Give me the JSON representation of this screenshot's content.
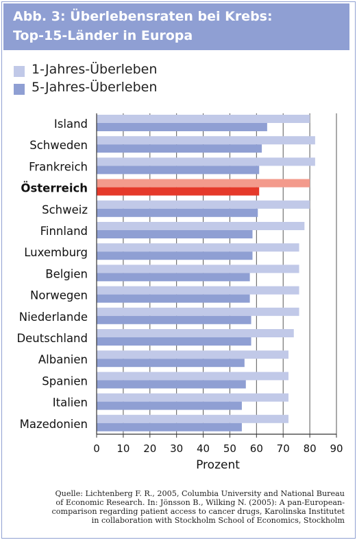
{
  "title": {
    "line1": "Abb. 3: Überlebensraten bei Krebs:",
    "line2": "Top-15-Länder in Europa"
  },
  "colors": {
    "title_bg": "#8f9fd3",
    "series1": "#c1c9e8",
    "series2": "#8f9fd3",
    "highlight1": "#f39a8c",
    "highlight2": "#e5392a",
    "grid": "#555555"
  },
  "chart_data": {
    "type": "bar",
    "orientation": "horizontal",
    "categories": [
      "Island",
      "Schweden",
      "Frankreich",
      "Österreich",
      "Schweiz",
      "Finnland",
      "Luxemburg",
      "Belgien",
      "Norwegen",
      "Niederlande",
      "Deutschland",
      "Albanien",
      "Spanien",
      "Italien",
      "Mazedonien"
    ],
    "highlight_category": "Österreich",
    "series": [
      {
        "name": "1-Jahres-Überleben",
        "values": [
          80,
          82,
          82,
          80,
          80,
          78,
          76,
          76,
          76,
          76,
          74,
          72,
          72,
          72,
          72
        ]
      },
      {
        "name": "5-Jahres-Überleben",
        "values": [
          64,
          62,
          61,
          61,
          60.5,
          58.5,
          58.5,
          57.5,
          57.5,
          58,
          58,
          55.5,
          56,
          54.5,
          54.5
        ]
      }
    ],
    "xlabel": "Prozent",
    "xlim": [
      0,
      90
    ],
    "xticks": [
      "0",
      "10",
      "20",
      "30",
      "40",
      "50",
      "60",
      "70",
      "80",
      "90"
    ],
    "grid": true,
    "legend_position": "top-left"
  },
  "source": {
    "lines": [
      "Quelle: Lichtenberg F. R., 2005, Columbia University and National Bureau",
      "of Economic Research. In: Jönsson B., Wilking N. (2005): A pan-European-",
      "comparison regarding patient access to cancer drugs, Karolinska Institutet",
      "in collaboration with Stockholm School of Economics, Stockholm"
    ]
  }
}
